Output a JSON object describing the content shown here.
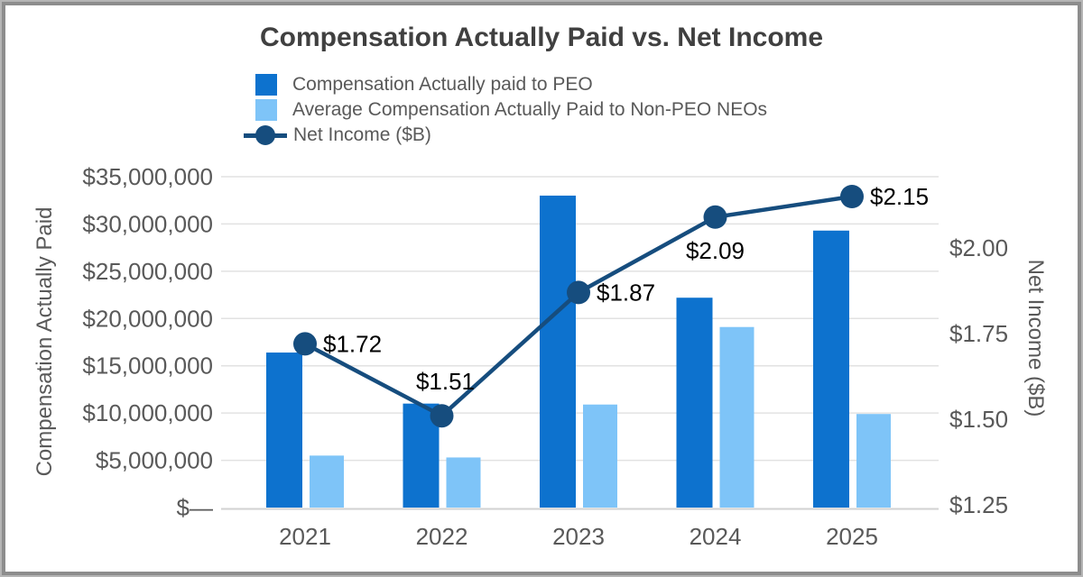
{
  "frame": {
    "background": "#ffffff",
    "border_outer_color": "#b5b5b5",
    "border_inner_color": "#8d8d8d"
  },
  "chart_data": {
    "type": "bar",
    "subtype": "bar+line combo, dual axis",
    "title": "Compensation Actually Paid vs. Net Income",
    "categories": [
      "2021",
      "2022",
      "2023",
      "2024",
      "2025"
    ],
    "series": [
      {
        "name": "Compensation Actually paid to PEO",
        "type": "bar",
        "axis": "left",
        "color": "#0d72ce",
        "values": [
          16400000,
          11000000,
          33000000,
          22200000,
          29300000
        ]
      },
      {
        "name": "Average Compensation Actually Paid to Non-PEO NEOs",
        "type": "bar",
        "axis": "left",
        "color": "#7ec4f8",
        "values": [
          5500000,
          5300000,
          10900000,
          19100000,
          9900000
        ]
      },
      {
        "name": "Net Income ($B)",
        "type": "line",
        "axis": "right",
        "color": "#164d7e",
        "values": [
          1.72,
          1.51,
          1.87,
          2.09,
          2.15
        ],
        "point_labels": [
          "$1.72",
          "$1.51",
          "$1.87",
          "$2.09",
          "$2.15"
        ],
        "label_positions": [
          "right",
          "above",
          "right",
          "below",
          "right"
        ]
      }
    ],
    "left_axis": {
      "title": "Compensation Actually Paid",
      "range": [
        0,
        35000000
      ],
      "ticks": [
        {
          "label": "$35,000,000",
          "value": 35000000
        },
        {
          "label": "$30,000,000",
          "value": 30000000
        },
        {
          "label": "$25,000,000",
          "value": 25000000
        },
        {
          "label": "$20,000,000",
          "value": 20000000
        },
        {
          "label": "$15,000,000",
          "value": 15000000
        },
        {
          "label": "$10,000,000",
          "value": 10000000
        },
        {
          "label": "$5,000,000",
          "value": 5000000
        },
        {
          "label": "$—",
          "value": 0
        }
      ]
    },
    "right_axis": {
      "title": "Net Income ($B)",
      "ticks": [
        {
          "label": "$2.00",
          "value": 2.0
        },
        {
          "label": "$1.75",
          "value": 1.75
        },
        {
          "label": "$1.50",
          "value": 1.5
        },
        {
          "label": "$1.25",
          "value": 1.25
        }
      ]
    },
    "grid": true,
    "legend_position": "top-left",
    "colors": {
      "grid": "#e2e2e2",
      "axis_line": "#d2d2d2",
      "tick_text": "#595959",
      "title_text": "#404040",
      "legend_text": "#595959",
      "data_label_text": "#000000"
    }
  }
}
